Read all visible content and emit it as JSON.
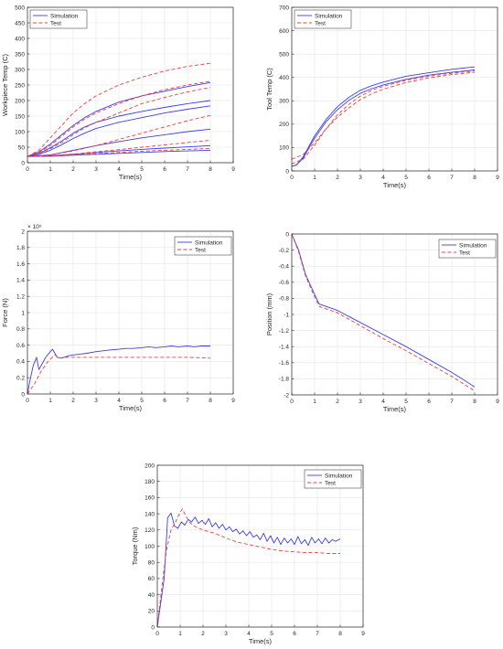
{
  "chart_data": [
    {
      "type": "line",
      "xlabel": "Time(s)",
      "ylabel": "Workpiece Temp (C)",
      "xlim": [
        0,
        9
      ],
      "ylim": [
        0,
        500
      ],
      "xticks": [
        0,
        1,
        2,
        3,
        4,
        5,
        6,
        7,
        8,
        9
      ],
      "yticks": [
        0,
        50,
        100,
        150,
        200,
        250,
        300,
        350,
        400,
        450,
        500
      ],
      "grid": true,
      "legend_position": "top-left",
      "legend": [
        {
          "name": "Simulation",
          "color": "#3c3cf0",
          "style": "solid"
        },
        {
          "name": "Test",
          "color": "#f03c3c",
          "style": "dashed"
        }
      ],
      "series": [
        {
          "name": "Simulation",
          "color": "#3c3cf0",
          "style": "solid",
          "x": [
            0,
            0.5,
            1,
            1.5,
            2,
            2.5,
            3,
            4,
            5,
            6,
            7,
            8
          ],
          "y": [
            20,
            35,
            60,
            90,
            120,
            145,
            165,
            195,
            215,
            230,
            245,
            258
          ]
        },
        {
          "name": "Simulation",
          "color": "#3c3cf0",
          "style": "solid",
          "x": [
            0,
            0.5,
            1,
            1.5,
            2,
            2.5,
            3,
            4,
            5,
            6,
            7,
            8
          ],
          "y": [
            20,
            30,
            48,
            70,
            95,
            115,
            130,
            150,
            165,
            178,
            190,
            200
          ]
        },
        {
          "name": "Simulation",
          "color": "#3c3cf0",
          "style": "solid",
          "x": [
            0,
            0.5,
            1,
            1.5,
            2,
            2.5,
            3,
            4,
            5,
            6,
            7,
            8
          ],
          "y": [
            20,
            27,
            40,
            58,
            78,
            95,
            110,
            130,
            145,
            160,
            172,
            183
          ]
        },
        {
          "name": "Simulation",
          "color": "#3c3cf0",
          "style": "solid",
          "x": [
            0,
            1,
            2,
            3,
            4,
            5,
            6,
            7,
            8
          ],
          "y": [
            20,
            25,
            40,
            55,
            68,
            80,
            90,
            100,
            108
          ]
        },
        {
          "name": "Simulation",
          "color": "#3c3cf0",
          "style": "solid",
          "x": [
            0,
            1,
            2,
            3,
            4,
            5,
            6,
            7,
            8
          ],
          "y": [
            20,
            22,
            27,
            33,
            38,
            43,
            47,
            51,
            55
          ]
        },
        {
          "name": "Simulation",
          "color": "#3c3cf0",
          "style": "solid",
          "x": [
            0,
            1,
            2,
            3,
            4,
            5,
            6,
            7,
            8
          ],
          "y": [
            20,
            21,
            24,
            27,
            30,
            33,
            36,
            38,
            40
          ]
        },
        {
          "name": "Test",
          "color": "#f03c3c",
          "style": "dashed",
          "x": [
            0,
            0.5,
            1,
            1.5,
            2,
            2.5,
            3,
            4,
            5,
            6,
            7,
            8
          ],
          "y": [
            20,
            40,
            80,
            120,
            160,
            190,
            215,
            250,
            275,
            295,
            310,
            320
          ]
        },
        {
          "name": "Test",
          "color": "#f03c3c",
          "style": "dashed",
          "x": [
            0,
            0.5,
            1,
            1.5,
            2,
            2.5,
            3,
            4,
            5,
            6,
            7,
            8
          ],
          "y": [
            20,
            33,
            55,
            85,
            115,
            140,
            160,
            190,
            215,
            235,
            250,
            262
          ]
        },
        {
          "name": "Test",
          "color": "#f03c3c",
          "style": "dashed",
          "x": [
            0,
            0.5,
            1,
            1.5,
            2,
            2.5,
            3,
            4,
            5,
            6,
            7,
            8
          ],
          "y": [
            20,
            30,
            45,
            65,
            90,
            112,
            130,
            160,
            190,
            210,
            228,
            242
          ]
        },
        {
          "name": "Test",
          "color": "#f03c3c",
          "style": "dashed",
          "x": [
            0,
            1,
            2,
            3,
            4,
            5,
            6,
            7,
            8
          ],
          "y": [
            20,
            25,
            38,
            55,
            75,
            95,
            115,
            135,
            152
          ]
        },
        {
          "name": "Test",
          "color": "#f03c3c",
          "style": "dashed",
          "x": [
            0,
            1,
            2,
            3,
            4,
            5,
            6,
            7,
            8
          ],
          "y": [
            20,
            22,
            28,
            35,
            42,
            50,
            57,
            65,
            72
          ]
        },
        {
          "name": "Test",
          "color": "#f03c3c",
          "style": "dashed",
          "x": [
            0,
            1,
            2,
            3,
            4,
            5,
            6,
            7,
            8
          ],
          "y": [
            20,
            21,
            25,
            29,
            33,
            37,
            40,
            43,
            46
          ]
        }
      ]
    },
    {
      "type": "line",
      "xlabel": "Time(s)",
      "ylabel": "Tool Temp (C)",
      "xlim": [
        0,
        9
      ],
      "ylim": [
        0,
        700
      ],
      "xticks": [
        0,
        1,
        2,
        3,
        4,
        5,
        6,
        7,
        8,
        9
      ],
      "yticks": [
        0,
        100,
        200,
        300,
        400,
        500,
        600,
        700
      ],
      "grid": true,
      "legend_position": "top-left",
      "legend": [
        {
          "name": "Simulation",
          "color": "#3c3cf0",
          "style": "solid"
        },
        {
          "name": "Test",
          "color": "#f03c3c",
          "style": "dashed"
        }
      ],
      "series": [
        {
          "name": "Simulation",
          "color": "#3c3cf0",
          "style": "solid",
          "x": [
            0,
            0.2,
            0.5,
            1,
            1.5,
            2,
            2.5,
            3,
            3.5,
            4,
            5,
            6,
            7,
            8
          ],
          "y": [
            20,
            25,
            60,
            150,
            220,
            275,
            315,
            345,
            365,
            380,
            405,
            420,
            435,
            445
          ]
        },
        {
          "name": "Simulation",
          "color": "#3c3cf0",
          "style": "solid",
          "x": [
            0,
            0.2,
            0.5,
            1,
            1.5,
            2,
            2.5,
            3,
            3.5,
            4,
            5,
            6,
            7,
            8
          ],
          "y": [
            20,
            25,
            55,
            140,
            210,
            262,
            302,
            332,
            352,
            368,
            392,
            410,
            422,
            432
          ]
        },
        {
          "name": "Test",
          "color": "#f03c3c",
          "style": "dashed",
          "x": [
            0,
            0.5,
            1,
            1.5,
            2,
            2.5,
            3,
            3.5,
            4,
            5,
            6,
            7,
            8
          ],
          "y": [
            50,
            70,
            120,
            180,
            230,
            270,
            305,
            330,
            350,
            378,
            398,
            412,
            422
          ]
        },
        {
          "name": "Test",
          "color": "#f03c3c",
          "style": "dashed",
          "x": [
            0,
            0.5,
            1,
            1.5,
            2,
            2.5,
            3,
            3.5,
            4,
            5,
            6,
            7,
            8
          ],
          "y": [
            30,
            50,
            110,
            180,
            240,
            285,
            320,
            345,
            362,
            388,
            405,
            418,
            428
          ]
        }
      ]
    },
    {
      "type": "line",
      "xlabel": "Time(s)",
      "ylabel": "Force (N)",
      "xlim": [
        0,
        9
      ],
      "ylim": [
        0,
        2
      ],
      "xticks": [
        0,
        1,
        2,
        3,
        4,
        5,
        6,
        7,
        8,
        9
      ],
      "yticks": [
        0,
        0.2,
        0.4,
        0.6,
        0.8,
        1,
        1.2,
        1.4,
        1.6,
        1.8,
        2
      ],
      "ytick_labels": [
        "0",
        "0.2",
        "0.4",
        "0.6",
        "0.8",
        "1",
        "1.2",
        "1.4",
        "1.6",
        "1.8",
        "2"
      ],
      "y_exponent": "× 10⁵",
      "grid": true,
      "legend_position": "top-right",
      "legend": [
        {
          "name": "Simulation",
          "color": "#3c3cf0",
          "style": "solid"
        },
        {
          "name": "Test",
          "color": "#f03c3c",
          "style": "dashed"
        }
      ],
      "series": [
        {
          "name": "Simulation",
          "color": "#3c3cf0",
          "style": "solid",
          "x": [
            0,
            0.1,
            0.25,
            0.4,
            0.5,
            0.6,
            0.8,
            1,
            1.1,
            1.2,
            1.3,
            1.5,
            1.8,
            2,
            2.3,
            2.6,
            3,
            3.3,
            3.6,
            4,
            4.3,
            4.6,
            5,
            5.3,
            5.6,
            6,
            6.3,
            6.6,
            7,
            7.3,
            7.6,
            8
          ],
          "y": [
            0,
            0.15,
            0.35,
            0.45,
            0.3,
            0.35,
            0.45,
            0.52,
            0.55,
            0.5,
            0.45,
            0.44,
            0.47,
            0.48,
            0.49,
            0.5,
            0.52,
            0.53,
            0.54,
            0.55,
            0.56,
            0.56,
            0.57,
            0.58,
            0.57,
            0.58,
            0.59,
            0.58,
            0.59,
            0.58,
            0.59,
            0.59
          ]
        },
        {
          "name": "Test",
          "color": "#f03c3c",
          "style": "dashed",
          "x": [
            0,
            0.3,
            0.6,
            0.9,
            1.2,
            1.4,
            1.6,
            2,
            3,
            4,
            5,
            6,
            7,
            8
          ],
          "y": [
            0,
            0.12,
            0.28,
            0.4,
            0.48,
            0.44,
            0.45,
            0.45,
            0.45,
            0.45,
            0.45,
            0.45,
            0.45,
            0.44
          ]
        }
      ]
    },
    {
      "type": "line",
      "xlabel": "Time(s)",
      "ylabel": "Position (mm)",
      "xlim": [
        0,
        9
      ],
      "ylim": [
        -2,
        0
      ],
      "xticks": [
        0,
        1,
        2,
        3,
        4,
        5,
        6,
        7,
        8,
        9
      ],
      "yticks": [
        -2,
        -1.8,
        -1.6,
        -1.4,
        -1.2,
        -1,
        -0.8,
        -0.6,
        -0.4,
        -0.2,
        0
      ],
      "grid": true,
      "legend_position": "top-right",
      "legend": [
        {
          "name": "Simulation",
          "color": "#3c3cf0",
          "style": "solid"
        },
        {
          "name": "Test",
          "color": "#f03c3c",
          "style": "dashed"
        }
      ],
      "series": [
        {
          "name": "Simulation",
          "color": "#3c3cf0",
          "style": "solid",
          "x": [
            0,
            0.3,
            0.6,
            1,
            1.2,
            2,
            3,
            4,
            5,
            6,
            7,
            8
          ],
          "y": [
            0,
            -0.2,
            -0.5,
            -0.75,
            -0.87,
            -0.95,
            -1.1,
            -1.25,
            -1.4,
            -1.56,
            -1.72,
            -1.9
          ]
        },
        {
          "name": "Test",
          "color": "#f03c3c",
          "style": "dashed",
          "x": [
            0,
            0.3,
            0.6,
            1,
            1.2,
            2,
            3,
            4,
            5,
            6,
            7,
            8
          ],
          "y": [
            0,
            -0.22,
            -0.52,
            -0.78,
            -0.9,
            -0.98,
            -1.14,
            -1.3,
            -1.45,
            -1.61,
            -1.77,
            -1.95
          ]
        }
      ]
    },
    {
      "type": "line",
      "xlabel": "Time(s)",
      "ylabel": "Torque (Nm)",
      "xlim": [
        0,
        9
      ],
      "ylim": [
        0,
        200
      ],
      "xticks": [
        0,
        1,
        2,
        3,
        4,
        5,
        6,
        7,
        8,
        9
      ],
      "yticks": [
        0,
        20,
        40,
        60,
        80,
        100,
        120,
        140,
        160,
        180,
        200
      ],
      "grid": true,
      "legend_position": "top-right",
      "legend": [
        {
          "name": "Simulation",
          "color": "#3c3cf0",
          "style": "solid"
        },
        {
          "name": "Test",
          "color": "#f03c3c",
          "style": "dashed"
        }
      ],
      "series": [
        {
          "name": "Simulation",
          "color": "#3c3cf0",
          "style": "solid",
          "x": [
            0,
            0.3,
            0.45,
            0.6,
            0.75,
            0.9,
            1.05,
            1.2,
            1.35,
            1.5,
            1.65,
            1.8,
            1.95,
            2.1,
            2.25,
            2.4,
            2.55,
            2.7,
            2.85,
            3,
            3.15,
            3.3,
            3.45,
            3.6,
            3.75,
            3.9,
            4.05,
            4.2,
            4.35,
            4.5,
            4.65,
            4.8,
            4.95,
            5.1,
            5.25,
            5.4,
            5.55,
            5.7,
            5.85,
            6,
            6.15,
            6.3,
            6.45,
            6.6,
            6.75,
            6.9,
            7.05,
            7.2,
            7.35,
            7.5,
            7.65,
            7.8,
            8
          ],
          "y": [
            0,
            60,
            135,
            141,
            125,
            122,
            130,
            126,
            133,
            130,
            136,
            128,
            132,
            127,
            134,
            124,
            129,
            122,
            127,
            120,
            124,
            118,
            121,
            115,
            119,
            113,
            118,
            111,
            114,
            108,
            116,
            106,
            113,
            104,
            111,
            102,
            110,
            104,
            109,
            102,
            112,
            103,
            108,
            101,
            111,
            104,
            109,
            103,
            110,
            104,
            108,
            106,
            109
          ]
        },
        {
          "name": "Test",
          "color": "#f03c3c",
          "style": "dashed",
          "x": [
            0,
            0.2,
            0.4,
            0.6,
            0.8,
            1,
            1.1,
            1.2,
            1.4,
            1.6,
            2,
            2.5,
            3,
            3.5,
            4,
            4.5,
            5,
            5.5,
            6,
            6.5,
            7,
            7.5,
            8
          ],
          "y": [
            0,
            50,
            95,
            120,
            130,
            142,
            146,
            140,
            130,
            125,
            120,
            116,
            110,
            105,
            102,
            99,
            96,
            94,
            93,
            92,
            92,
            91,
            91
          ]
        }
      ]
    }
  ]
}
